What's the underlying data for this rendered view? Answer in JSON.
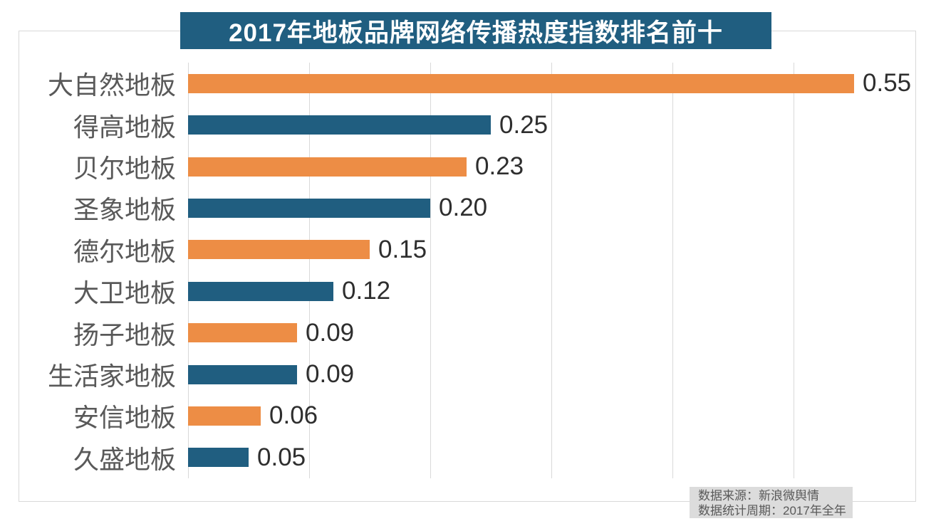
{
  "title": "2017年地板品牌网络传播热度指数排名前十",
  "source_note": {
    "line1": "数据来源：新浪微舆情",
    "line2": "数据统计周期：2017年全年"
  },
  "colors": {
    "orange": "#ed8d45",
    "teal": "#205e80",
    "title_bg": "#205e80",
    "title_text": "#ffffff",
    "gridline": "#d9d9d9",
    "frame_border": "#d9d9d9",
    "category_label": "#595959",
    "value_label": "#2e2e2e",
    "source_bg": "#dcdcdc",
    "source_text": "#595959",
    "background": "#ffffff"
  },
  "chart_data": {
    "type": "bar",
    "orientation": "horizontal",
    "title": "2017年地板品牌网络传播热度指数排名前十",
    "categories": [
      "大自然地板",
      "得高地板",
      "贝尔地板",
      "圣象地板",
      "德尔地板",
      "大卫地板",
      "扬子地板",
      "生活家地板",
      "安信地板",
      "久盛地板"
    ],
    "values": [
      0.55,
      0.25,
      0.23,
      0.2,
      0.15,
      0.12,
      0.09,
      0.09,
      0.06,
      0.05
    ],
    "value_labels": [
      "0.55",
      "0.25",
      "0.23",
      "0.20",
      "0.15",
      "0.12",
      "0.09",
      "0.09",
      "0.06",
      "0.05"
    ],
    "bar_colors": [
      "#ed8d45",
      "#205e80",
      "#ed8d45",
      "#205e80",
      "#ed8d45",
      "#205e80",
      "#ed8d45",
      "#205e80",
      "#ed8d45",
      "#205e80"
    ],
    "xlabel": "",
    "ylabel": "",
    "xlim": [
      0,
      0.6
    ],
    "grid": true,
    "grid_interval": 0.1,
    "legend": false,
    "value_label_position": "end"
  }
}
